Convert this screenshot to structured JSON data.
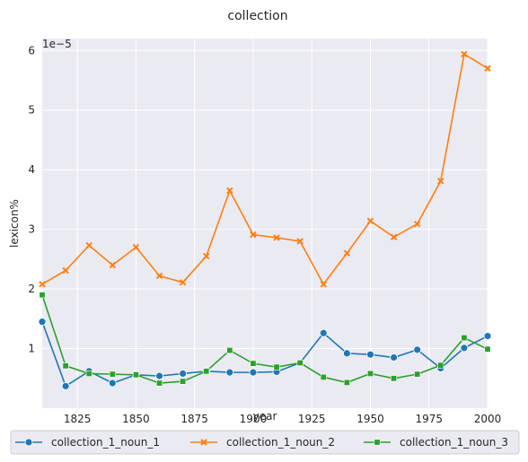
{
  "chart_data": {
    "type": "line",
    "title": "collection",
    "xlabel": "year",
    "ylabel": "lexicon%",
    "y_multiplier_label": "1e−5",
    "xlim": [
      1810,
      2000
    ],
    "ylim": [
      0,
      6.2
    ],
    "x_ticks": [
      1825,
      1850,
      1875,
      1900,
      1925,
      1950,
      1975,
      2000
    ],
    "x_tick_labels": [
      "1825",
      "1850",
      "1875",
      "1900",
      "1925",
      "1950",
      "1975",
      "2000"
    ],
    "y_ticks": [
      1,
      2,
      3,
      4,
      5,
      6
    ],
    "y_tick_labels": [
      "1",
      "2",
      "3",
      "4",
      "5",
      "6"
    ],
    "grid": true,
    "legend_position": "bottom",
    "x": [
      1810,
      1820,
      1830,
      1840,
      1850,
      1860,
      1870,
      1880,
      1890,
      1900,
      1910,
      1920,
      1930,
      1940,
      1950,
      1960,
      1970,
      1980,
      1990,
      2000
    ],
    "series": [
      {
        "name": "collection_1_noun_1",
        "color": "#1f77b4",
        "marker": "circle",
        "values": [
          1.45,
          0.37,
          0.62,
          0.42,
          0.56,
          0.54,
          0.58,
          0.62,
          0.6,
          0.6,
          0.61,
          0.76,
          1.26,
          0.92,
          0.9,
          0.85,
          0.98,
          0.67,
          1.01,
          1.21
        ]
      },
      {
        "name": "collection_1_noun_2",
        "color": "#ff7f0e",
        "marker": "x",
        "values": [
          2.08,
          2.31,
          2.73,
          2.4,
          2.7,
          2.22,
          2.11,
          2.55,
          3.65,
          2.91,
          2.86,
          2.8,
          2.08,
          2.6,
          3.14,
          2.87,
          3.09,
          3.81,
          5.94,
          5.7
        ]
      },
      {
        "name": "collection_1_noun_3",
        "color": "#2ca02c",
        "marker": "square",
        "values": [
          1.9,
          0.71,
          0.58,
          0.57,
          0.56,
          0.42,
          0.45,
          0.62,
          0.97,
          0.75,
          0.69,
          0.76,
          0.52,
          0.43,
          0.58,
          0.5,
          0.57,
          0.72,
          1.18,
          0.99
        ]
      }
    ]
  }
}
